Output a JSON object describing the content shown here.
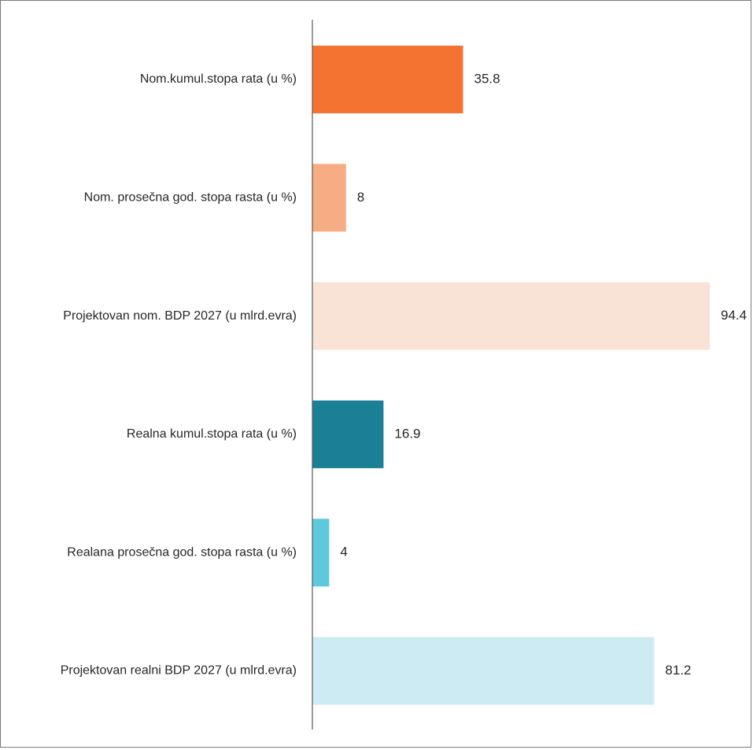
{
  "chart_data": {
    "type": "bar",
    "orientation": "horizontal",
    "title": "",
    "xlabel": "",
    "ylabel": "",
    "xlim": [
      0,
      100
    ],
    "grid": false,
    "legend": "none",
    "categories": [
      "Nom.kumul.stopa rata (u %)",
      "Nom. prosečna god. stopa rasta (u %)",
      "Projektovan nom. BDP 2027 (u mlrd.evra)",
      "Realna kumul.stopa rata (u %)",
      "Realana prosečna god. stopa rasta (u %)",
      "Projektovan realni BDP 2027 (u mlrd.evra)"
    ],
    "values": [
      35.8,
      8,
      94.4,
      16.9,
      4,
      81.2
    ],
    "value_labels": [
      "35.8",
      "8",
      "94.4",
      "16.9",
      "4",
      "81.2"
    ],
    "colors": [
      "#f47331",
      "#f6ad84",
      "#f8e3d6",
      "#1b7f95",
      "#5ec8dd",
      "#cdebf3"
    ]
  }
}
